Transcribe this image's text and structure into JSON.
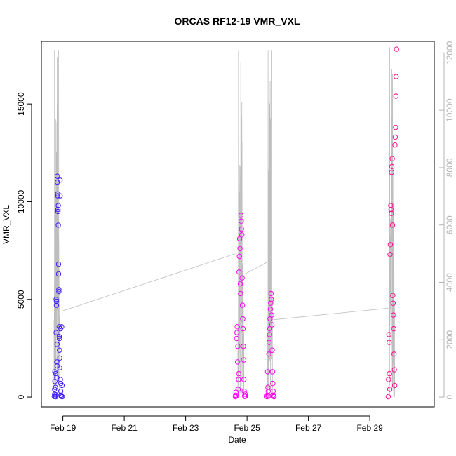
{
  "chart_data": {
    "type": "scatter",
    "title": "ORCAS RF12-19 VMR_VXL",
    "xlabel": "Date",
    "ylabel": "VMR_VXL",
    "x_ticks": [
      "Feb 19",
      "Feb 21",
      "Feb 23",
      "Feb 25",
      "Feb 27",
      "Feb 29"
    ],
    "x_tick_days": [
      19,
      21,
      23,
      25,
      27,
      29
    ],
    "xlim_days": [
      18.3,
      31.1
    ],
    "ylim": [
      -500,
      18200
    ],
    "y_ticks": [
      0,
      5000,
      10000,
      15000
    ],
    "y2lim": [
      -340,
      12400
    ],
    "y2_ticks": [
      0,
      2000,
      4000,
      6000,
      8000,
      10000,
      12000
    ],
    "grid": false,
    "colors": {
      "start": "#3b1eff",
      "mid": "#ff00ff",
      "end": "#ff0f8f",
      "line": "#bebebe",
      "right_axis": "#b4b4b4"
    },
    "flights": [
      {
        "start_day": 18.72,
        "end_day": 18.98,
        "points": [
          [
            18.72,
            30
          ],
          [
            18.73,
            150
          ],
          [
            18.73,
            400
          ],
          [
            18.74,
            800
          ],
          [
            18.74,
            1300
          ],
          [
            18.75,
            60
          ],
          [
            18.76,
            1200
          ],
          [
            18.76,
            500
          ],
          [
            18.77,
            120
          ],
          [
            18.77,
            20
          ],
          [
            18.78,
            3300
          ],
          [
            18.78,
            5000
          ],
          [
            18.79,
            4900
          ],
          [
            18.79,
            4700
          ],
          [
            18.8,
            1800
          ],
          [
            18.8,
            1000
          ],
          [
            18.81,
            2700
          ],
          [
            18.81,
            1600
          ],
          [
            18.82,
            11300
          ],
          [
            18.82,
            11000
          ],
          [
            18.83,
            10400
          ],
          [
            18.83,
            10300
          ],
          [
            18.84,
            9600
          ],
          [
            18.84,
            9500
          ],
          [
            18.85,
            9800
          ],
          [
            18.85,
            8800
          ],
          [
            18.86,
            6800
          ],
          [
            18.86,
            6300
          ],
          [
            18.87,
            5500
          ],
          [
            18.87,
            5400
          ],
          [
            18.88,
            3600
          ],
          [
            18.88,
            3100
          ],
          [
            18.89,
            3000
          ],
          [
            18.89,
            2400
          ],
          [
            18.9,
            2000
          ],
          [
            18.9,
            1500
          ],
          [
            18.91,
            11100
          ],
          [
            18.91,
            10300
          ],
          [
            18.92,
            3500
          ],
          [
            18.92,
            900
          ],
          [
            18.93,
            700
          ],
          [
            18.93,
            300
          ],
          [
            18.94,
            100
          ],
          [
            18.95,
            40
          ],
          [
            18.96,
            3600
          ],
          [
            18.97,
            600
          ],
          [
            18.98,
            20
          ]
        ]
      },
      {
        "start_day": 24.62,
        "end_day": 24.95,
        "points": [
          [
            24.62,
            20
          ],
          [
            24.63,
            100
          ],
          [
            24.64,
            250
          ],
          [
            24.65,
            60
          ],
          [
            24.66,
            3000
          ],
          [
            24.67,
            3300
          ],
          [
            24.68,
            3600
          ],
          [
            24.69,
            1800
          ],
          [
            24.7,
            2600
          ],
          [
            24.71,
            400
          ],
          [
            24.72,
            900
          ],
          [
            24.73,
            1200
          ],
          [
            24.74,
            6400
          ],
          [
            24.75,
            7200
          ],
          [
            24.76,
            8100
          ],
          [
            24.77,
            7600
          ],
          [
            24.78,
            5800
          ],
          [
            24.79,
            5300
          ],
          [
            24.8,
            9300
          ],
          [
            24.81,
            9000
          ],
          [
            24.82,
            8600
          ],
          [
            24.83,
            8300
          ],
          [
            24.84,
            6100
          ],
          [
            24.85,
            4700
          ],
          [
            24.86,
            4000
          ],
          [
            24.87,
            3500
          ],
          [
            24.88,
            2600
          ],
          [
            24.89,
            1900
          ],
          [
            24.9,
            900
          ],
          [
            24.91,
            300
          ],
          [
            24.92,
            60
          ],
          [
            24.93,
            30
          ],
          [
            24.94,
            150
          ],
          [
            24.95,
            50
          ]
        ]
      },
      {
        "start_day": 25.65,
        "end_day": 25.88,
        "points": [
          [
            25.65,
            20
          ],
          [
            25.66,
            100
          ],
          [
            25.67,
            1300
          ],
          [
            25.68,
            500
          ],
          [
            25.69,
            300
          ],
          [
            25.7,
            60
          ],
          [
            25.71,
            2200
          ],
          [
            25.72,
            2800
          ],
          [
            25.73,
            3200
          ],
          [
            25.74,
            3500
          ],
          [
            25.75,
            4000
          ],
          [
            25.76,
            4500
          ],
          [
            25.77,
            4800
          ],
          [
            25.78,
            5300
          ],
          [
            25.79,
            5000
          ],
          [
            25.8,
            4200
          ],
          [
            25.81,
            3700
          ],
          [
            25.82,
            2400
          ],
          [
            25.83,
            1300
          ],
          [
            25.84,
            700
          ],
          [
            25.85,
            300
          ],
          [
            25.86,
            100
          ],
          [
            25.87,
            40
          ],
          [
            25.88,
            20
          ]
        ]
      },
      {
        "start_day": 29.6,
        "end_day": 29.87,
        "points": [
          [
            29.6,
            20
          ],
          [
            29.61,
            900
          ],
          [
            29.62,
            3200
          ],
          [
            29.63,
            2800
          ],
          [
            29.64,
            1200
          ],
          [
            29.65,
            400
          ],
          [
            29.66,
            7300
          ],
          [
            29.67,
            7800
          ],
          [
            29.68,
            9800
          ],
          [
            29.69,
            9600
          ],
          [
            29.7,
            9400
          ],
          [
            29.71,
            11500
          ],
          [
            29.72,
            11800
          ],
          [
            29.73,
            12200
          ],
          [
            29.74,
            8800
          ],
          [
            29.75,
            5200
          ],
          [
            29.76,
            4800
          ],
          [
            29.77,
            4200
          ],
          [
            29.78,
            3500
          ],
          [
            29.79,
            2200
          ],
          [
            29.8,
            1400
          ],
          [
            29.81,
            600
          ],
          [
            29.82,
            12900
          ],
          [
            29.83,
            13300
          ],
          [
            29.84,
            13800
          ],
          [
            29.85,
            15400
          ],
          [
            29.86,
            16400
          ],
          [
            29.87,
            17800
          ]
        ]
      }
    ],
    "line_series": {
      "axis": "right",
      "spikes": [
        {
          "center_day": 18.8,
          "width_days": 0.18,
          "peak": 12100
        },
        {
          "center_day": 24.8,
          "width_days": 0.2,
          "peak": 12100
        },
        {
          "center_day": 25.75,
          "width_days": 0.16,
          "peak": 12100
        },
        {
          "center_day": 29.72,
          "width_days": 0.18,
          "peak": 12200
        }
      ],
      "connectors": [
        {
          "from_day": 18.98,
          "from_value": 3000,
          "to_day": 24.62,
          "to_value": 5000
        },
        {
          "from_day": 24.95,
          "from_value": 4300,
          "to_day": 25.65,
          "to_value": 4700
        },
        {
          "from_day": 25.88,
          "from_value": 2700,
          "to_day": 29.6,
          "to_value": 3100
        }
      ]
    }
  }
}
